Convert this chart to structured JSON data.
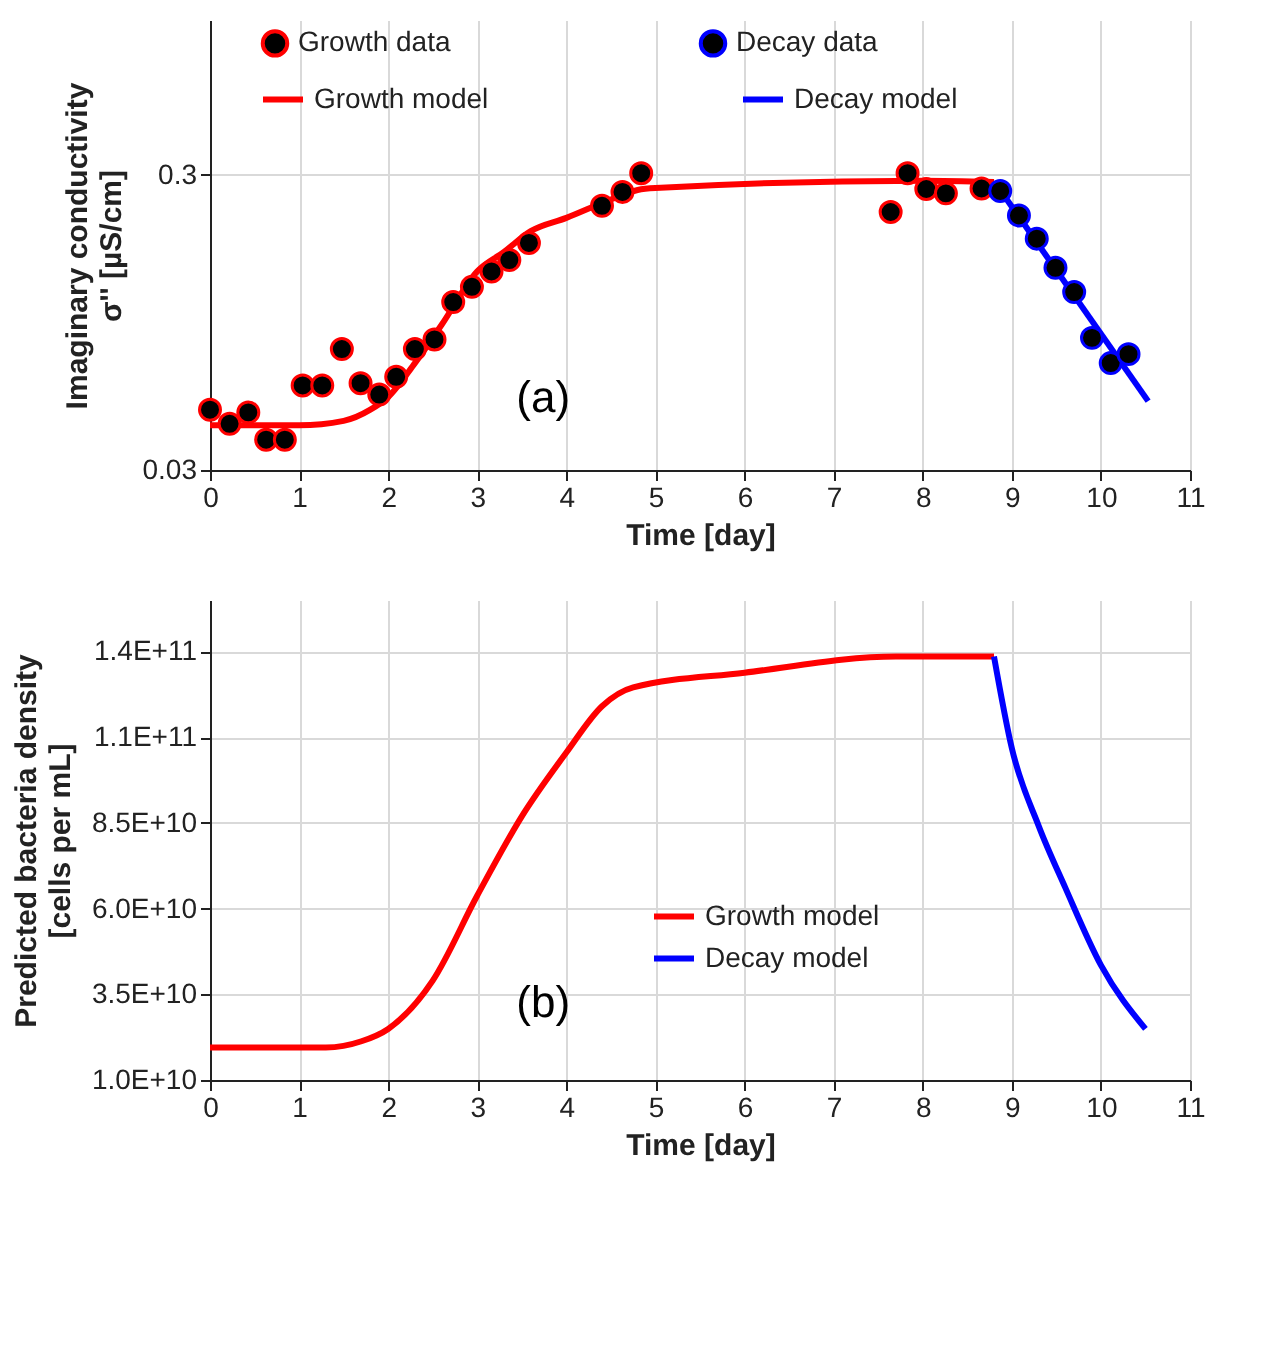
{
  "chart_data": [
    {
      "type": "scatter",
      "xlabel": "Time [day]",
      "ylabel": "Imaginary conductivity\nσ'' [µS/cm]",
      "log": "y",
      "xlim": [
        0,
        11
      ],
      "xticks": [
        0,
        1,
        2,
        3,
        4,
        5,
        6,
        7,
        8,
        9,
        10,
        11
      ],
      "ylim": [
        0.03,
        1
      ],
      "yticks": [
        0.03,
        0.3
      ],
      "grid": true,
      "legend": "top",
      "annotations": [
        "(a)"
      ],
      "series": [
        {
          "name": "Growth data",
          "type": "scatter",
          "marker": "circle",
          "color": "#ff0000",
          "x": [
            0,
            0.22,
            0.43,
            0.63,
            0.84,
            1.04,
            1.26,
            1.48,
            1.69,
            1.9,
            2.09,
            2.3,
            2.52,
            2.73,
            2.94,
            3.16,
            3.36,
            3.58,
            4.4,
            4.63,
            4.84,
            7.64,
            7.83,
            8.04,
            8.26,
            8.66
          ],
          "values": [
            0.048,
            0.043,
            0.047,
            0.038,
            0.038,
            0.058,
            0.058,
            0.077,
            0.059,
            0.054,
            0.062,
            0.077,
            0.083,
            0.111,
            0.125,
            0.141,
            0.154,
            0.176,
            0.235,
            0.262,
            0.303,
            0.224,
            0.303,
            0.268,
            0.259,
            0.269
          ]
        },
        {
          "name": "Decay data",
          "type": "scatter",
          "marker": "circle",
          "color": "#0000ff",
          "x": [
            8.87,
            9.08,
            9.28,
            9.49,
            9.7,
            9.9,
            10.11,
            10.31
          ],
          "values": [
            0.264,
            0.218,
            0.182,
            0.145,
            0.12,
            0.084,
            0.069,
            0.074
          ]
        },
        {
          "name": "Growth model",
          "type": "line",
          "color": "#ff0000",
          "x": [
            0,
            1,
            1.5,
            1.8,
            2,
            2.3,
            2.6,
            3,
            3.3,
            3.6,
            4,
            4.5,
            4.8,
            5,
            8,
            8.8
          ],
          "values": [
            0.0425,
            0.0425,
            0.044,
            0.048,
            0.053,
            0.069,
            0.093,
            0.141,
            0.164,
            0.193,
            0.214,
            0.247,
            0.266,
            0.27,
            0.286,
            0.283
          ]
        },
        {
          "name": "Decay model",
          "type": "line",
          "color": "#0000ff",
          "x": [
            8.85,
            10.53
          ],
          "values": [
            0.271,
            0.0513
          ]
        }
      ]
    },
    {
      "type": "line",
      "xlabel": "Time [day]",
      "ylabel": "Predicted bacteria density\n[cells per mL]",
      "xlim": [
        0,
        11
      ],
      "xticks": [
        0,
        1,
        2,
        3,
        4,
        5,
        6,
        7,
        8,
        9,
        10,
        11
      ],
      "ylim": [
        10000000000.0,
        150000000000.0
      ],
      "yticks": [
        {
          "value": 10000000000.0,
          "label": "1.0E+10"
        },
        {
          "value": 35000000000.0,
          "label": "3.5E+10"
        },
        {
          "value": 60000000000.0,
          "label": "6.0E+10"
        },
        {
          "value": 85000000000.0,
          "label": "8.5E+10"
        },
        {
          "value": 110000000000.0,
          "label": "1.1E+11"
        },
        {
          "value": 135000000000.0,
          "label": "1.4E+11"
        }
      ],
      "grid": true,
      "legend": "center",
      "annotations": [
        "(b)"
      ],
      "series": [
        {
          "name": "Growth model",
          "type": "line",
          "color": "#ff0000",
          "x": [
            0,
            1.3,
            1.7,
            2,
            2.5,
            3,
            3.5,
            4,
            4.4,
            4.75,
            6,
            7.7,
            8.8
          ],
          "values": [
            19500000000.0,
            19500000000.0,
            21300000000.0,
            24900000000.0,
            39000000000.0,
            63800000000.0,
            86900000000.0,
            105500000000.0,
            119000000000.0,
            124500000000.0,
            128800000000.0,
            133500000000.0,
            133500000000.0
          ]
        },
        {
          "name": "Decay model",
          "type": "line",
          "color": "#0000ff",
          "x": [
            8.8,
            9,
            9.3,
            9.6,
            10,
            10.5
          ],
          "values": [
            133500000000.0,
            106800000000.0,
            84200000000.0,
            66100000000.0,
            43500000000.0,
            24900000000.0
          ]
        }
      ]
    }
  ]
}
